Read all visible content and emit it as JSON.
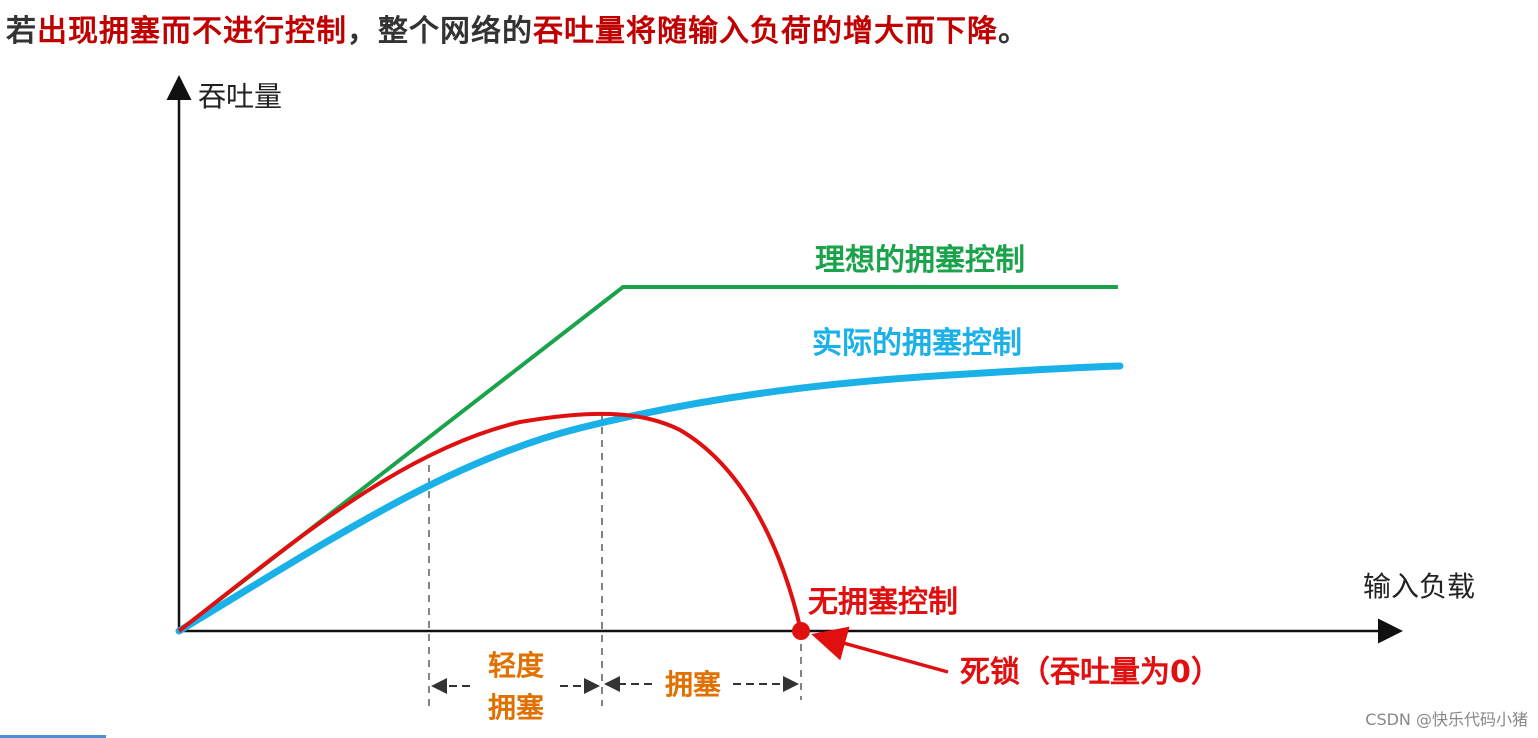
{
  "header": {
    "part1": "若",
    "part2": "出现拥塞而不进行控制",
    "part3": "，整个网络的",
    "part4": "吞吐量将随输入负荷的增大而下降",
    "part5": "。"
  },
  "axes": {
    "y_label": "吞吐量",
    "x_label": "输入负载"
  },
  "curves": {
    "ideal": {
      "label": "理想的拥塞控制",
      "color": "#1aa34a"
    },
    "actual": {
      "label": "实际的拥塞控制",
      "color": "#1ab0e8"
    },
    "none": {
      "label": "无拥塞控制",
      "color": "#e01010"
    }
  },
  "regions": {
    "light_line1": "轻度",
    "light_line2": "拥塞",
    "congestion": "拥塞",
    "region_color": "#e07000"
  },
  "annotations": {
    "deadlock": "死锁（吞吐量为0）"
  },
  "watermark": "CSDN @快乐代码小猪"
}
